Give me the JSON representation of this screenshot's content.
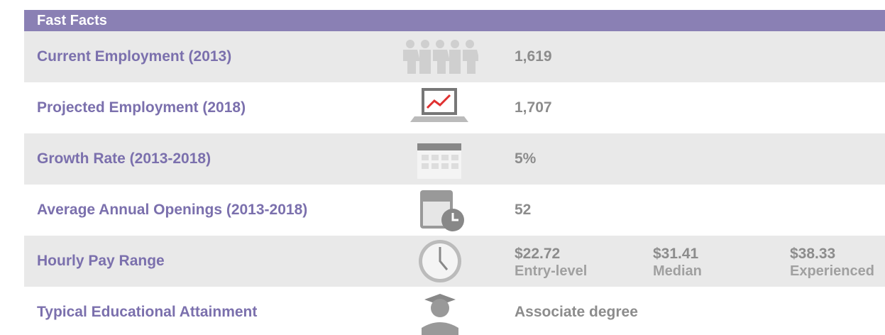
{
  "header": {
    "title": "Fast Facts"
  },
  "rows": [
    {
      "label": "Current Employment (2013)",
      "value": "1,619"
    },
    {
      "label": "Projected Employment (2018)",
      "value": "1,707"
    },
    {
      "label": "Growth Rate (2013-2018)",
      "value": "5%"
    },
    {
      "label": "Average Annual Openings (2013-2018)",
      "value": "52"
    },
    {
      "label": "Hourly Pay Range",
      "pay": [
        {
          "amount": "$22.72",
          "level": "Entry-level"
        },
        {
          "amount": "$31.41",
          "level": "Median"
        },
        {
          "amount": "$38.33",
          "level": "Experienced"
        }
      ]
    },
    {
      "label": "Typical Educational Attainment",
      "value": "Associate degree"
    }
  ]
}
